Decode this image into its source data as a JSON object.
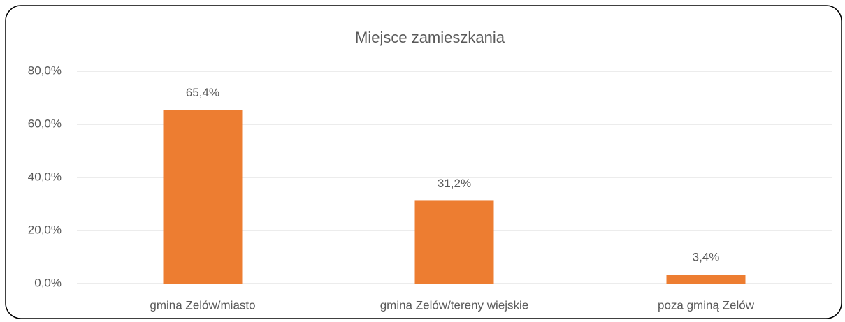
{
  "chart_data": {
    "type": "bar",
    "title": "Miejsce zamieszkania",
    "categories": [
      "gmina Zelów/miasto",
      "gmina Zelów/tereny wiejskie",
      "poza gminą Zelów"
    ],
    "values": [
      65.4,
      31.2,
      3.4
    ],
    "value_labels": [
      "65,4%",
      "31,2%",
      "3,4%"
    ],
    "color": "#ed7d31",
    "ylim": [
      0,
      80
    ],
    "yticks": [
      {
        "value": 0,
        "label": "0,0%"
      },
      {
        "value": 20,
        "label": "20,0%"
      },
      {
        "value": 40,
        "label": "40,0%"
      },
      {
        "value": 60,
        "label": "60,0%"
      },
      {
        "value": 80,
        "label": "80,0%"
      }
    ],
    "grid": true
  }
}
